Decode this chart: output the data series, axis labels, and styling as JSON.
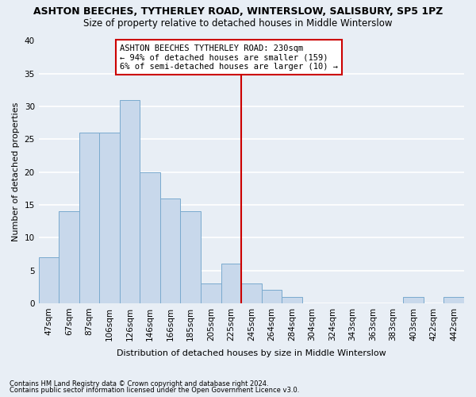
{
  "title": "ASHTON BEECHES, TYTHERLEY ROAD, WINTERSLOW, SALISBURY, SP5 1PZ",
  "subtitle": "Size of property relative to detached houses in Middle Winterslow",
  "xlabel": "Distribution of detached houses by size in Middle Winterslow",
  "ylabel": "Number of detached properties",
  "footnote1": "Contains HM Land Registry data © Crown copyright and database right 2024.",
  "footnote2": "Contains public sector information licensed under the Open Government Licence v3.0.",
  "bar_labels": [
    "47sqm",
    "67sqm",
    "87sqm",
    "106sqm",
    "126sqm",
    "146sqm",
    "166sqm",
    "185sqm",
    "205sqm",
    "225sqm",
    "245sqm",
    "264sqm",
    "284sqm",
    "304sqm",
    "324sqm",
    "343sqm",
    "363sqm",
    "383sqm",
    "403sqm",
    "422sqm",
    "442sqm"
  ],
  "bar_values": [
    7,
    14,
    26,
    26,
    31,
    20,
    16,
    14,
    3,
    6,
    3,
    2,
    1,
    0,
    0,
    0,
    0,
    0,
    1,
    0,
    1
  ],
  "bar_color": "#c8d8eb",
  "bar_edgecolor": "#7aaace",
  "background_color": "#e8eef5",
  "grid_color": "#ffffff",
  "ylim": [
    0,
    40
  ],
  "yticks": [
    0,
    5,
    10,
    15,
    20,
    25,
    30,
    35,
    40
  ],
  "vline_index": 9,
  "vline_color": "#cc0000",
  "annotation_text": "ASHTON BEECHES TYTHERLEY ROAD: 230sqm\n← 94% of detached houses are smaller (159)\n6% of semi-detached houses are larger (10) →",
  "title_fontsize": 9,
  "subtitle_fontsize": 8.5,
  "axis_label_fontsize": 8,
  "tick_fontsize": 7.5,
  "annotation_fontsize": 7.5,
  "footnote_fontsize": 6
}
